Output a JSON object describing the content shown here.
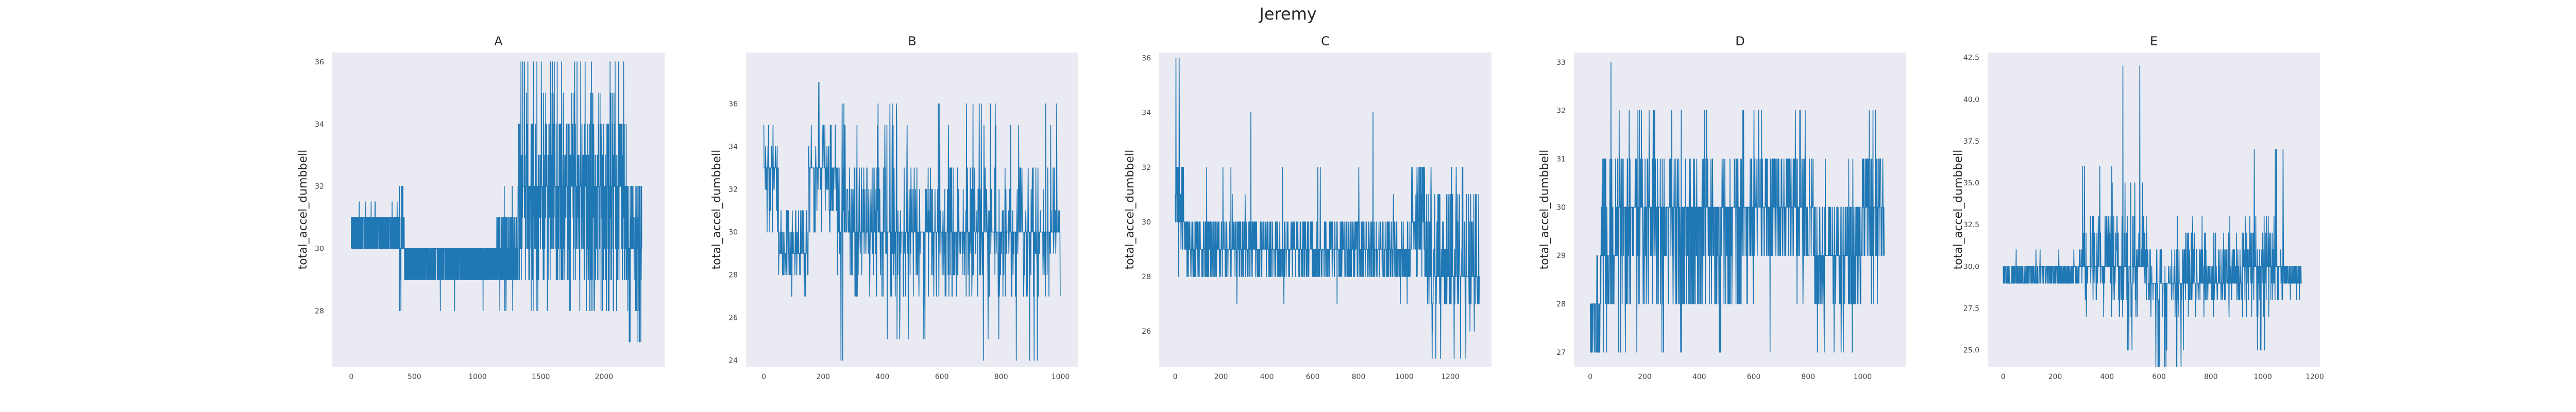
{
  "title": "Jeremy",
  "chart_data": [
    {
      "type": "line",
      "title": "A",
      "xlabel": "",
      "ylabel": "total_accel_dumbbell",
      "xlim": [
        -150,
        2480
      ],
      "ylim": [
        26.2,
        36.3
      ],
      "xticks": [
        0,
        500,
        1000,
        1500,
        2000
      ],
      "yticks": [
        28,
        30,
        32,
        34,
        36
      ],
      "color": "#1f77b4",
      "grid": false,
      "segments": [
        {
          "x0": 0,
          "x1": 380,
          "base": 30,
          "alt": [
            31
          ],
          "spike": 0.01,
          "salt": [
            31.5
          ]
        },
        {
          "x0": 380,
          "x1": 420,
          "base": 30,
          "alt": [
            31,
            32
          ],
          "spike": 0.08,
          "salt": [
            29,
            28,
            32
          ]
        },
        {
          "x0": 420,
          "x1": 1150,
          "base": 29,
          "alt": [
            30
          ],
          "spike": 0.005,
          "salt": [
            28
          ]
        },
        {
          "x0": 1150,
          "x1": 1320,
          "base": 29,
          "alt": [
            30,
            31
          ],
          "spike": 0.06,
          "salt": [
            28,
            32
          ]
        },
        {
          "x0": 1320,
          "x1": 2180,
          "base": 32,
          "alt": [
            29,
            30,
            31,
            33,
            34
          ],
          "spike": 0.08,
          "salt": [
            35,
            36,
            28
          ]
        },
        {
          "x0": 2180,
          "x1": 2300,
          "base": 30,
          "alt": [
            29,
            31,
            32
          ],
          "spike": 0.05,
          "salt": [
            27,
            28
          ]
        }
      ]
    },
    {
      "type": "line",
      "title": "B",
      "xlabel": "",
      "ylabel": "total_accel_dumbbell",
      "xlim": [
        -60,
        1060
      ],
      "ylim": [
        23.7,
        38.4
      ],
      "xticks": [
        0,
        200,
        400,
        600,
        800,
        1000
      ],
      "yticks": [
        24,
        26,
        28,
        30,
        32,
        34,
        36
      ],
      "color": "#1f77b4",
      "grid": false,
      "segments": [
        {
          "x0": 0,
          "x1": 50,
          "base": 33,
          "alt": [
            31,
            32,
            34,
            35
          ],
          "spike": 0.08,
          "salt": [
            30
          ]
        },
        {
          "x0": 50,
          "x1": 150,
          "base": 29,
          "alt": [
            28,
            30,
            31
          ],
          "spike": 0.04,
          "salt": [
            27
          ]
        },
        {
          "x0": 150,
          "x1": 250,
          "base": 33,
          "alt": [
            30,
            31,
            32,
            34,
            35
          ],
          "spike": 0.08,
          "salt": [
            37,
            28
          ]
        },
        {
          "x0": 250,
          "x1": 1000,
          "base": 30,
          "alt": [
            27,
            28,
            29,
            31,
            32,
            33
          ],
          "spike": 0.07,
          "salt": [
            25,
            24,
            35,
            36
          ]
        }
      ]
    },
    {
      "type": "line",
      "title": "C",
      "xlabel": "",
      "ylabel": "total_accel_dumbbell",
      "xlim": [
        -70,
        1380
      ],
      "ylim": [
        24.7,
        36.2
      ],
      "xticks": [
        0,
        200,
        400,
        600,
        800,
        1000,
        1200
      ],
      "yticks": [
        26,
        28,
        30,
        32,
        34,
        36
      ],
      "color": "#1f77b4",
      "grid": false,
      "segments": [
        {
          "x0": 0,
          "x1": 40,
          "base": 30,
          "alt": [
            29,
            31,
            32
          ],
          "spike": 0.15,
          "salt": [
            36,
            34,
            28
          ]
        },
        {
          "x0": 40,
          "x1": 1030,
          "base": 29,
          "alt": [
            28,
            30
          ],
          "spike": 0.02,
          "salt": [
            27,
            31,
            32,
            34
          ]
        },
        {
          "x0": 1030,
          "x1": 1090,
          "base": 30,
          "alt": [
            29,
            31,
            32
          ],
          "spike": 0.06,
          "salt": [
            28
          ]
        },
        {
          "x0": 1090,
          "x1": 1330,
          "base": 28,
          "alt": [
            27,
            29,
            30,
            31
          ],
          "spike": 0.06,
          "salt": [
            25,
            26,
            32
          ]
        }
      ]
    },
    {
      "type": "line",
      "title": "D",
      "xlabel": "",
      "ylabel": "total_accel_dumbbell",
      "xlim": [
        -60,
        1160
      ],
      "ylim": [
        26.7,
        33.2
      ],
      "xticks": [
        0,
        200,
        400,
        600,
        800,
        1000
      ],
      "yticks": [
        27,
        28,
        29,
        30,
        31,
        32,
        33
      ],
      "color": "#1f77b4",
      "grid": false,
      "segments": [
        {
          "x0": 0,
          "x1": 40,
          "base": 28,
          "alt": [
            27
          ],
          "spike": 0.05,
          "salt": [
            29
          ]
        },
        {
          "x0": 40,
          "x1": 100,
          "base": 29,
          "alt": [
            28,
            30,
            31
          ],
          "spike": 0.1,
          "salt": [
            33,
            27
          ]
        },
        {
          "x0": 100,
          "x1": 600,
          "base": 30,
          "alt": [
            28,
            29,
            31
          ],
          "spike": 0.05,
          "salt": [
            32,
            27
          ]
        },
        {
          "x0": 600,
          "x1": 820,
          "base": 30,
          "alt": [
            29,
            31
          ],
          "spike": 0.05,
          "salt": [
            32,
            28,
            27
          ]
        },
        {
          "x0": 820,
          "x1": 1000,
          "base": 29,
          "alt": [
            28,
            30
          ],
          "spike": 0.05,
          "salt": [
            27,
            31
          ]
        },
        {
          "x0": 1000,
          "x1": 1080,
          "base": 30,
          "alt": [
            29,
            31
          ],
          "spike": 0.08,
          "salt": [
            32,
            28
          ]
        }
      ]
    },
    {
      "type": "line",
      "title": "E",
      "xlabel": "",
      "ylabel": "total_accel_dumbbell",
      "xlim": [
        -60,
        1220
      ],
      "ylim": [
        24.0,
        42.8
      ],
      "xticks": [
        0,
        200,
        400,
        600,
        800,
        1000,
        1200
      ],
      "yticks": [
        25.0,
        27.5,
        30.0,
        32.5,
        35.0,
        37.5,
        40.0,
        42.5
      ],
      "color": "#1f77b4",
      "grid": false,
      "segments": [
        {
          "x0": 0,
          "x1": 20,
          "base": 29,
          "alt": [
            30
          ],
          "spike": 0.05,
          "salt": [
            29
          ]
        },
        {
          "x0": 20,
          "x1": 300,
          "base": 29,
          "alt": [
            30
          ],
          "spike": 0.03,
          "salt": [
            31
          ]
        },
        {
          "x0": 300,
          "x1": 440,
          "base": 30,
          "alt": [
            28,
            29,
            31,
            32,
            33
          ],
          "spike": 0.06,
          "salt": [
            35,
            36,
            27
          ]
        },
        {
          "x0": 440,
          "x1": 560,
          "base": 30,
          "alt": [
            27,
            28,
            29,
            31,
            32,
            33
          ],
          "spike": 0.07,
          "salt": [
            42,
            38,
            35,
            25
          ]
        },
        {
          "x0": 560,
          "x1": 700,
          "base": 29,
          "alt": [
            27,
            28,
            30,
            31
          ],
          "spike": 0.07,
          "salt": [
            24,
            25,
            33
          ]
        },
        {
          "x0": 700,
          "x1": 920,
          "base": 29,
          "alt": [
            28,
            30,
            31,
            32
          ],
          "spike": 0.05,
          "salt": [
            33,
            27
          ]
        },
        {
          "x0": 920,
          "x1": 1080,
          "base": 30,
          "alt": [
            27,
            28,
            29,
            31,
            32,
            33
          ],
          "spike": 0.06,
          "salt": [
            37,
            25
          ]
        },
        {
          "x0": 1080,
          "x1": 1150,
          "base": 29,
          "alt": [
            30
          ],
          "spike": 0.03,
          "salt": [
            28
          ]
        }
      ]
    }
  ]
}
